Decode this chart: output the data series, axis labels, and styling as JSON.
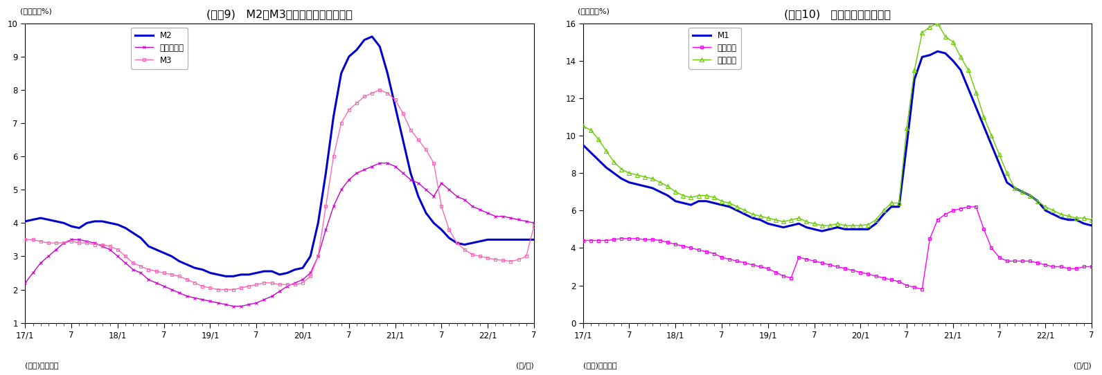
{
  "chart1": {
    "title": "(図袆9)   M2、M3、広義流動性の伸び率",
    "ylabel": "(前年比、%)",
    "xlabel": "(年/月)",
    "source": "(資料)日本銀行",
    "ylim": [
      1,
      10
    ],
    "yticks": [
      1,
      2,
      3,
      4,
      5,
      6,
      7,
      8,
      9,
      10
    ],
    "xtick_labels": [
      "17/1",
      "7",
      "18/1",
      "7",
      "19/1",
      "7",
      "20/1",
      "7",
      "21/1",
      "7",
      "22/1",
      "7"
    ],
    "series": {
      "M2": {
        "color": "#0000CD",
        "linewidth": 2.2,
        "marker": null,
        "markersize": 0,
        "linestyle": "-",
        "values": [
          4.05,
          4.1,
          4.15,
          4.1,
          4.05,
          4.0,
          3.9,
          3.85,
          4.0,
          4.05,
          4.05,
          4.0,
          3.95,
          3.85,
          3.7,
          3.55,
          3.3,
          3.2,
          3.1,
          3.0,
          2.85,
          2.75,
          2.65,
          2.6,
          2.5,
          2.45,
          2.4,
          2.4,
          2.45,
          2.45,
          2.5,
          2.55,
          2.55,
          2.45,
          2.5,
          2.6,
          2.65,
          3.0,
          4.0,
          5.5,
          7.2,
          8.5,
          9.0,
          9.2,
          9.5,
          9.6,
          9.3,
          8.5,
          7.5,
          6.5,
          5.5,
          4.8,
          4.3,
          4.0,
          3.8,
          3.55,
          3.4,
          3.35,
          3.4,
          3.45,
          3.5,
          3.5,
          3.5,
          3.5,
          3.5,
          3.5,
          3.5
        ]
      },
      "広義流動性": {
        "color": "#CC00CC",
        "linewidth": 1.0,
        "marker": "x",
        "markersize": 3.5,
        "linestyle": "-",
        "values": [
          2.2,
          2.5,
          2.8,
          3.0,
          3.2,
          3.4,
          3.5,
          3.5,
          3.45,
          3.4,
          3.3,
          3.2,
          3.0,
          2.8,
          2.6,
          2.5,
          2.3,
          2.2,
          2.1,
          2.0,
          1.9,
          1.8,
          1.75,
          1.7,
          1.65,
          1.6,
          1.55,
          1.5,
          1.5,
          1.55,
          1.6,
          1.7,
          1.8,
          1.95,
          2.1,
          2.2,
          2.3,
          2.5,
          3.0,
          3.8,
          4.5,
          5.0,
          5.3,
          5.5,
          5.6,
          5.7,
          5.8,
          5.8,
          5.7,
          5.5,
          5.3,
          5.2,
          5.0,
          4.8,
          5.2,
          5.0,
          4.8,
          4.7,
          4.5,
          4.4,
          4.3,
          4.2,
          4.2,
          4.15,
          4.1,
          4.05,
          4.0
        ]
      },
      "M3": {
        "color": "#FF69B4",
        "linewidth": 1.0,
        "marker": "s",
        "markersize": 3.5,
        "linestyle": "-",
        "values": [
          3.5,
          3.5,
          3.45,
          3.4,
          3.4,
          3.4,
          3.45,
          3.4,
          3.4,
          3.35,
          3.35,
          3.3,
          3.2,
          3.0,
          2.8,
          2.7,
          2.6,
          2.55,
          2.5,
          2.45,
          2.4,
          2.3,
          2.2,
          2.1,
          2.05,
          2.0,
          2.0,
          2.0,
          2.05,
          2.1,
          2.15,
          2.2,
          2.2,
          2.15,
          2.15,
          2.15,
          2.2,
          2.4,
          3.0,
          4.5,
          6.0,
          7.0,
          7.4,
          7.6,
          7.8,
          7.9,
          8.0,
          7.9,
          7.7,
          7.3,
          6.8,
          6.5,
          6.2,
          5.8,
          4.5,
          3.8,
          3.4,
          3.2,
          3.05,
          3.0,
          2.95,
          2.9,
          2.88,
          2.85,
          2.9,
          3.0,
          3.9
        ]
      }
    }
  },
  "chart2": {
    "title": "(図袆10)   現金・預金の伸び率",
    "ylabel": "(前年比、%)",
    "xlabel": "(年/月)",
    "source": "(資料)日本銀行",
    "ylim": [
      0,
      16
    ],
    "yticks": [
      0,
      2,
      4,
      6,
      8,
      10,
      12,
      14,
      16
    ],
    "xtick_labels": [
      "17/1",
      "7",
      "18/1",
      "7",
      "19/1",
      "7",
      "20/1",
      "7",
      "21/1",
      "7",
      "22/1",
      "7"
    ],
    "series": {
      "M1": {
        "color": "#0000CD",
        "linewidth": 2.2,
        "marker": null,
        "markersize": 0,
        "linestyle": "-",
        "values": [
          9.5,
          9.1,
          8.7,
          8.3,
          8.0,
          7.7,
          7.5,
          7.4,
          7.3,
          7.2,
          7.0,
          6.8,
          6.5,
          6.4,
          6.3,
          6.5,
          6.5,
          6.4,
          6.3,
          6.2,
          6.0,
          5.8,
          5.6,
          5.5,
          5.3,
          5.2,
          5.1,
          5.2,
          5.3,
          5.1,
          5.0,
          4.9,
          5.0,
          5.1,
          5.0,
          5.0,
          5.0,
          5.0,
          5.3,
          5.8,
          6.2,
          6.2,
          9.5,
          13.0,
          14.2,
          14.3,
          14.5,
          14.4,
          14.0,
          13.5,
          12.5,
          11.5,
          10.5,
          9.5,
          8.5,
          7.5,
          7.2,
          7.0,
          6.8,
          6.5,
          6.0,
          5.8,
          5.6,
          5.5,
          5.5,
          5.3,
          5.2
        ]
      },
      "現金通貨": {
        "color": "#FF00FF",
        "linewidth": 1.0,
        "marker": "s",
        "markersize": 3.5,
        "linestyle": "-",
        "values": [
          4.4,
          4.4,
          4.4,
          4.4,
          4.45,
          4.5,
          4.5,
          4.5,
          4.45,
          4.45,
          4.4,
          4.3,
          4.2,
          4.1,
          4.0,
          3.9,
          3.8,
          3.7,
          3.5,
          3.4,
          3.3,
          3.2,
          3.1,
          3.0,
          2.9,
          2.7,
          2.5,
          2.4,
          3.5,
          3.4,
          3.3,
          3.2,
          3.1,
          3.0,
          2.9,
          2.8,
          2.7,
          2.6,
          2.5,
          2.4,
          2.3,
          2.2,
          2.0,
          1.9,
          1.8,
          4.5,
          5.5,
          5.8,
          6.0,
          6.1,
          6.2,
          6.2,
          5.0,
          4.0,
          3.5,
          3.3,
          3.3,
          3.3,
          3.3,
          3.2,
          3.1,
          3.0,
          3.0,
          2.9,
          2.9,
          3.0,
          3.0
        ]
      },
      "預金通貨": {
        "color": "#66CC00",
        "linewidth": 1.0,
        "marker": "^",
        "markersize": 4.5,
        "linestyle": "-",
        "values": [
          10.5,
          10.3,
          9.8,
          9.2,
          8.6,
          8.2,
          8.0,
          7.9,
          7.8,
          7.7,
          7.5,
          7.3,
          7.0,
          6.8,
          6.7,
          6.8,
          6.8,
          6.7,
          6.5,
          6.4,
          6.2,
          6.0,
          5.8,
          5.7,
          5.6,
          5.5,
          5.4,
          5.5,
          5.6,
          5.4,
          5.3,
          5.2,
          5.2,
          5.3,
          5.2,
          5.2,
          5.2,
          5.25,
          5.5,
          6.0,
          6.4,
          6.4,
          10.4,
          13.5,
          15.5,
          15.8,
          16.0,
          15.3,
          15.0,
          14.2,
          13.5,
          12.3,
          11.0,
          10.0,
          9.0,
          8.0,
          7.2,
          7.0,
          6.8,
          6.5,
          6.2,
          6.0,
          5.8,
          5.7,
          5.6,
          5.6,
          5.5
        ]
      }
    }
  },
  "n_points": 67,
  "background_color": "#FFFFFF"
}
